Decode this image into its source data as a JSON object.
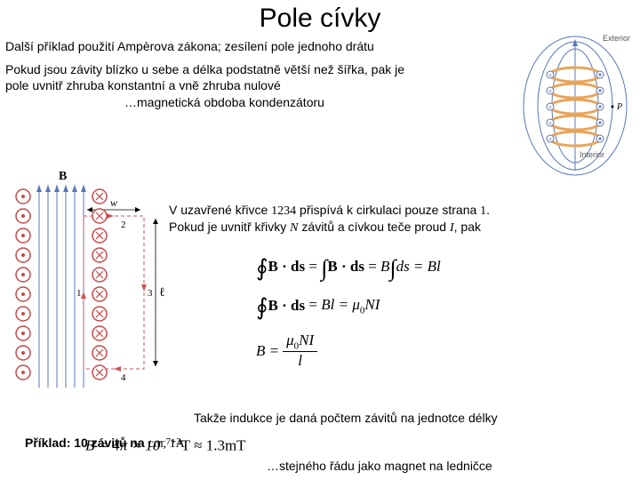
{
  "title": "Pole cívky",
  "subtitle": "Další příklad použití Ampèrova zákona; zesílení pole jednoho drátu",
  "para1": "Pokud jsou závity blízko u sebe a délka podstatně větší než šířka, pak je pole uvnitř zhruba konstantní a vně zhruba nulové",
  "analogy": "…magnetická obdoba kondenzátoru",
  "para2_a": "V uzavřené křivce ",
  "para2_n1": "1234",
  "para2_b": " přispívá k cirkulaci pouze strana ",
  "para2_n2": "1",
  "para2_c": ". Pokud je uvnitř křivky ",
  "para2_N": "N",
  "para2_d": " závitů a cívkou teče proud ",
  "para2_I": "I",
  "para2_e": ", pak",
  "conclusion": "Takže indukce je daná počtem závitů na jednotce délky",
  "example_a": "Příklad: 10 závitů na ",
  "example_b": "cm, 1A",
  "fridge": "…stejného řádu jako magnet na ledničce",
  "calc_lhs": "B = 4π × 10",
  "calc_exp": "−7+3",
  "calc_rhs": "T ≈ 1.3mT",
  "eq1_a": "B · ds",
  "eq1_b": "B · ds",
  "eq1_c": "B",
  "eq1_d": "ds = Bl",
  "eq2": "B · ds",
  "eq2_b": "Bl = μ",
  "eq2_c": "NI",
  "eq3_lhs": "B = ",
  "eq3_num": "μ",
  "eq3_num2": "NI",
  "eq3_den": "l",
  "topright_labels": {
    "ext": "Exterior",
    "int": "Interior",
    "p": "P"
  },
  "leftdiag_labels": {
    "B": "B",
    "w": "w",
    "l": "ℓ",
    "n1": "1",
    "n2": "2",
    "n3": "3",
    "n4": "4"
  },
  "colors": {
    "axis_blue": "#5a76b8",
    "coil_orange": "#e8a55a",
    "wire_red": "#c84848",
    "dash_red": "#cc5555",
    "text": "#000000",
    "label_gray": "#555555"
  }
}
